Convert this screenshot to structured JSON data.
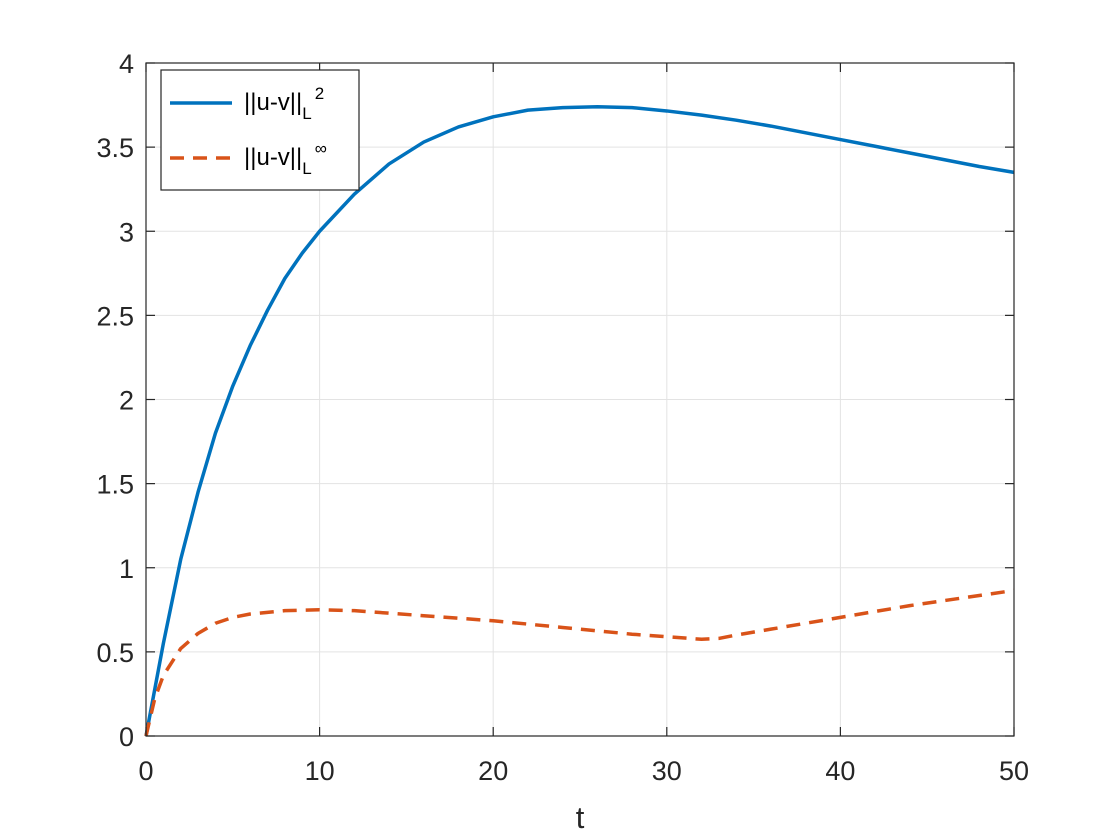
{
  "chart_data": {
    "type": "line",
    "xlabel": "t",
    "ylabel": "",
    "xlim": [
      0,
      50
    ],
    "ylim": [
      0,
      4
    ],
    "xticks": [
      0,
      10,
      20,
      30,
      40,
      50
    ],
    "yticks": [
      0,
      0.5,
      1,
      1.5,
      2,
      2.5,
      3,
      3.5,
      4
    ],
    "xtick_labels": [
      "0",
      "10",
      "20",
      "30",
      "40",
      "50"
    ],
    "ytick_labels": [
      "0",
      "0.5",
      "1",
      "1.5",
      "2",
      "2.5",
      "3",
      "3.5",
      "4"
    ],
    "grid": true,
    "legend_position": "top-left",
    "series": [
      {
        "name": "||u-v||",
        "name_subscript": "L",
        "name_superscript": "2",
        "color": "#0072BD",
        "style": "solid",
        "x": [
          0,
          1,
          2,
          3,
          4,
          5,
          6,
          7,
          8,
          9,
          10,
          12,
          14,
          16,
          18,
          20,
          22,
          24,
          26,
          28,
          30,
          32,
          34,
          36,
          38,
          40,
          42,
          44,
          46,
          48,
          50
        ],
        "y": [
          0,
          0.55,
          1.05,
          1.45,
          1.8,
          2.08,
          2.32,
          2.53,
          2.72,
          2.87,
          3.0,
          3.22,
          3.4,
          3.53,
          3.62,
          3.68,
          3.72,
          3.735,
          3.74,
          3.735,
          3.715,
          3.69,
          3.66,
          3.625,
          3.585,
          3.545,
          3.505,
          3.465,
          3.425,
          3.385,
          3.35
        ]
      },
      {
        "name": "||u-v||",
        "name_subscript": "L",
        "name_superscript": "∞",
        "color": "#D95319",
        "style": "dashed",
        "x": [
          0,
          0.5,
          1,
          2,
          3,
          4,
          5,
          6,
          8,
          10,
          12,
          14,
          16,
          18,
          20,
          22,
          24,
          26,
          28,
          30,
          32,
          33,
          34,
          36,
          38,
          40,
          42,
          44,
          46,
          48,
          50
        ],
        "y": [
          0,
          0.22,
          0.36,
          0.52,
          0.61,
          0.67,
          0.705,
          0.725,
          0.745,
          0.75,
          0.745,
          0.73,
          0.715,
          0.7,
          0.685,
          0.665,
          0.645,
          0.625,
          0.605,
          0.59,
          0.575,
          0.58,
          0.6,
          0.635,
          0.67,
          0.705,
          0.74,
          0.775,
          0.805,
          0.835,
          0.865
        ]
      }
    ]
  }
}
